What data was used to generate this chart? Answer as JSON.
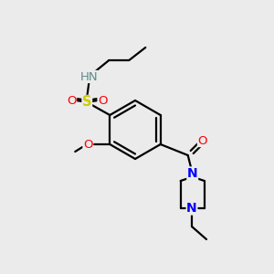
{
  "background_color": "#ebebeb",
  "atom_colors": {
    "C": "#000000",
    "H": "#5f8a8b",
    "N": "#0000ff",
    "O": "#ff0000",
    "S": "#cccc00"
  },
  "bond_color": "#000000",
  "bond_lw": 1.6
}
